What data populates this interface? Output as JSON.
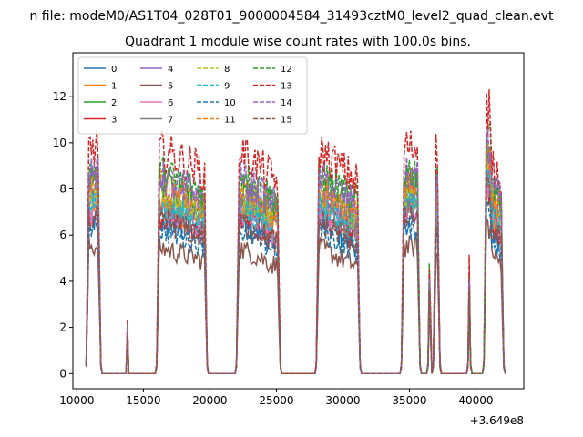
{
  "suptitle": "n file: modeM0/AS1T04_028T01_9000004584_31493cztM0_level2_quad_clean.evt",
  "chart_data": {
    "type": "line",
    "title": "Quadrant 1 module wise count rates with 100.0s bins.",
    "xlabel": "",
    "ylabel": "",
    "x_offset_label": "+3.649e8",
    "xlim": [
      9700,
      43600
    ],
    "ylim": [
      -0.66,
      13.9
    ],
    "xticks": [
      10000,
      15000,
      20000,
      25000,
      30000,
      35000,
      40000
    ],
    "yticks": [
      0,
      2,
      4,
      6,
      8,
      10,
      12
    ],
    "grid": false,
    "legend": {
      "placement": "top-left",
      "columns": 4
    },
    "segments": [
      {
        "start": 10700,
        "end": 11800,
        "drift": 0.0
      },
      {
        "start": 16000,
        "end": 19800,
        "drift": -0.03
      },
      {
        "start": 22000,
        "end": 25300,
        "drift": -0.05
      },
      {
        "start": 28000,
        "end": 31300,
        "drift": -0.05
      },
      {
        "start": 34400,
        "end": 35800,
        "drift": 0.0
      },
      {
        "start": 36400,
        "end": 36650,
        "drift": 0.0
      },
      {
        "start": 36800,
        "end": 37300,
        "drift": 0.0
      },
      {
        "start": 39400,
        "end": 39600,
        "drift": 0.0
      },
      {
        "start": 40600,
        "end": 42100,
        "drift": -0.1
      }
    ],
    "spike": {
      "x": 13800,
      "scale": 0.24
    },
    "series": [
      {
        "name": "0",
        "style": "solid",
        "color": "#1f77b4",
        "level": 6.6
      },
      {
        "name": "1",
        "style": "solid",
        "color": "#ff7f0e",
        "level": 7.4
      },
      {
        "name": "2",
        "style": "solid",
        "color": "#2ca02c",
        "level": 8.4
      },
      {
        "name": "3",
        "style": "solid",
        "color": "#d62728",
        "level": 6.9
      },
      {
        "name": "4",
        "style": "solid",
        "color": "#9467bd",
        "level": 8.1
      },
      {
        "name": "5",
        "style": "solid",
        "color": "#8c564b",
        "level": 5.5
      },
      {
        "name": "6",
        "style": "solid",
        "color": "#e377c2",
        "level": 7.1
      },
      {
        "name": "7",
        "style": "solid",
        "color": "#7f7f7f",
        "level": 7.6
      },
      {
        "name": "8",
        "style": "dashed",
        "color": "#bcbd22",
        "level": 7.8
      },
      {
        "name": "9",
        "style": "dashed",
        "color": "#17becf",
        "level": 7.3
      },
      {
        "name": "10",
        "style": "dashed",
        "color": "#1f77b4",
        "level": 6.3
      },
      {
        "name": "11",
        "style": "dashed",
        "color": "#ff7f0e",
        "level": 8.2
      },
      {
        "name": "12",
        "style": "dashed",
        "color": "#2ca02c",
        "level": 8.8
      },
      {
        "name": "13",
        "style": "dashed",
        "color": "#d62728",
        "level": 9.8
      },
      {
        "name": "14",
        "style": "dashed",
        "color": "#9467bd",
        "level": 8.6
      },
      {
        "name": "15",
        "style": "dashed",
        "color": "#8c564b",
        "level": 6.7
      }
    ]
  }
}
